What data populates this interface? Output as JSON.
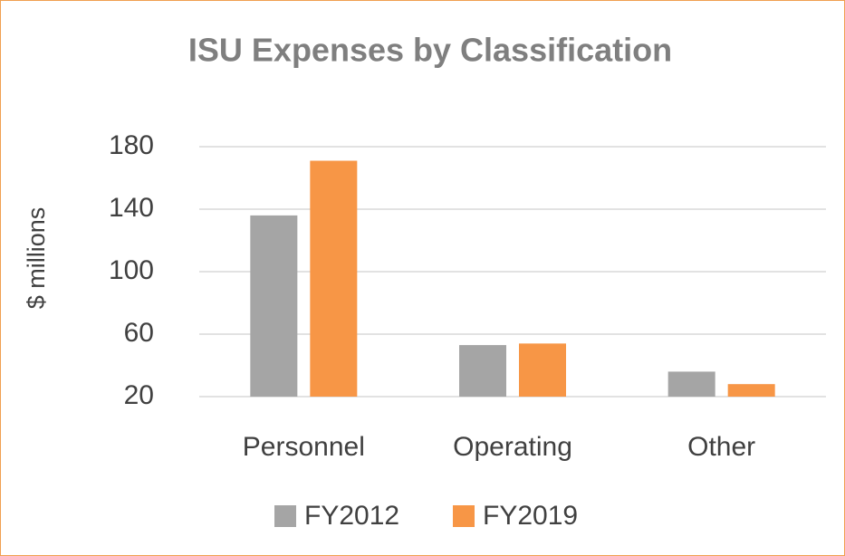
{
  "chart_data": {
    "type": "bar",
    "title": "ISU Expenses by Classification",
    "y_label": "$ millions",
    "categories": [
      "Personnel",
      "Operating",
      "Other"
    ],
    "series": [
      {
        "name": "FY2012",
        "color": "#a5a5a5",
        "values": [
          136,
          53,
          36
        ]
      },
      {
        "name": "FY2019",
        "color": "#f79646",
        "values": [
          171,
          54,
          28
        ]
      }
    ],
    "ylim": [
      20,
      180
    ],
    "yticks": [
      20,
      60,
      100,
      140,
      180
    ],
    "grid": true,
    "legend": "bottom"
  }
}
